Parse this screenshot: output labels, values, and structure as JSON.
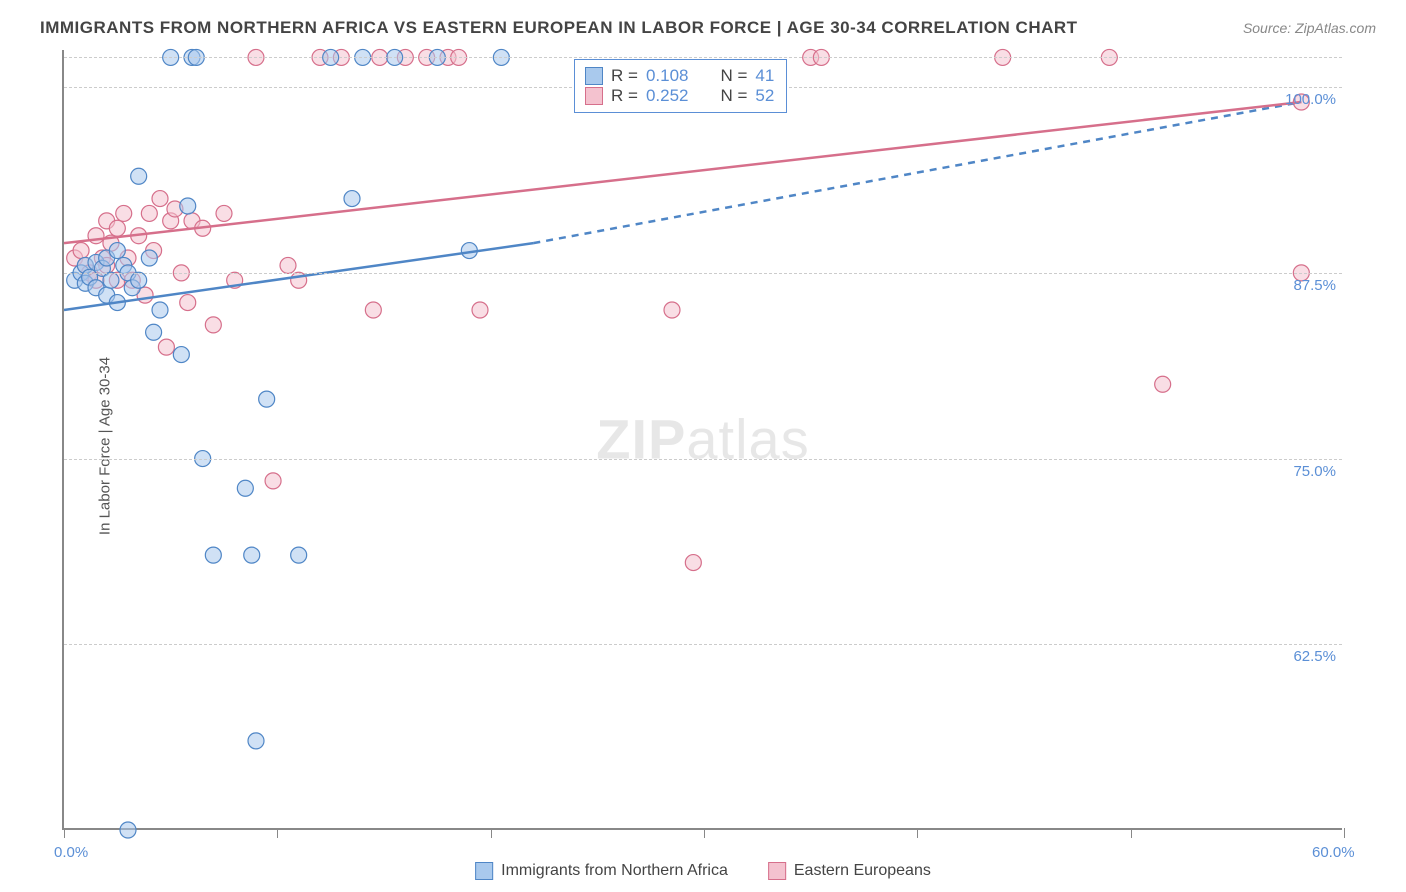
{
  "title": "IMMIGRANTS FROM NORTHERN AFRICA VS EASTERN EUROPEAN IN LABOR FORCE | AGE 30-34 CORRELATION CHART",
  "source": "Source: ZipAtlas.com",
  "ylabel": "In Labor Force | Age 30-34",
  "watermark_part1": "ZIP",
  "watermark_part2": "atlas",
  "chart": {
    "type": "scatter",
    "xlim": [
      0,
      60
    ],
    "ylim": [
      50,
      102.5
    ],
    "y_gridlines": [
      62.5,
      75.0,
      87.5,
      100.0,
      102.0
    ],
    "y_tick_labels": [
      "62.5%",
      "75.0%",
      "87.5%",
      "100.0%"
    ],
    "x_ticks": [
      0,
      10,
      20,
      30,
      40,
      50,
      60
    ],
    "x_tick_labels": [
      "0.0%",
      "60.0%"
    ],
    "background_color": "#ffffff",
    "grid_color": "#cccccc",
    "axis_color": "#888888",
    "tick_label_color": "#5b8fd6",
    "marker_radius": 8,
    "marker_opacity": 0.55,
    "line_width": 2.5
  },
  "series_a": {
    "label": "Immigrants from Northern Africa",
    "color_fill": "#a9c9ed",
    "color_stroke": "#4f86c6",
    "R": "0.108",
    "N": "41",
    "trend": {
      "x1": 0,
      "y1": 85.0,
      "x2": 22,
      "y2": 89.5,
      "x2_dash": 58,
      "y2_dash": 99.0
    },
    "points": [
      [
        0.5,
        87
      ],
      [
        0.8,
        87.5
      ],
      [
        1.0,
        88
      ],
      [
        1.0,
        86.8
      ],
      [
        1.2,
        87.2
      ],
      [
        1.5,
        86.5
      ],
      [
        1.5,
        88.2
      ],
      [
        1.8,
        87.8
      ],
      [
        2.0,
        88.5
      ],
      [
        2.0,
        86
      ],
      [
        2.2,
        87
      ],
      [
        2.5,
        89
      ],
      [
        2.5,
        85.5
      ],
      [
        2.8,
        88
      ],
      [
        3.0,
        87.5
      ],
      [
        3.2,
        86.5
      ],
      [
        3.5,
        94
      ],
      [
        3.5,
        87
      ],
      [
        4.0,
        88.5
      ],
      [
        4.2,
        83.5
      ],
      [
        4.5,
        85
      ],
      [
        5.0,
        102
      ],
      [
        5.5,
        82
      ],
      [
        5.8,
        92
      ],
      [
        6.0,
        102
      ],
      [
        6.2,
        102
      ],
      [
        6.5,
        75
      ],
      [
        7.0,
        68.5
      ],
      [
        8.5,
        73
      ],
      [
        8.8,
        68.5
      ],
      [
        9.0,
        56
      ],
      [
        9.5,
        79
      ],
      [
        11.0,
        68.5
      ],
      [
        12.5,
        102
      ],
      [
        13.5,
        92.5
      ],
      [
        14.0,
        102
      ],
      [
        15.5,
        102
      ],
      [
        17.5,
        102
      ],
      [
        19.0,
        89
      ],
      [
        20.5,
        102
      ],
      [
        3.0,
        50
      ]
    ]
  },
  "series_b": {
    "label": "Eastern Europeans",
    "color_fill": "#f4c2cf",
    "color_stroke": "#d66f8b",
    "R": "0.252",
    "N": "52",
    "trend": {
      "x1": 0,
      "y1": 89.5,
      "x2": 58,
      "y2": 99.0
    },
    "points": [
      [
        0.5,
        88.5
      ],
      [
        0.8,
        89
      ],
      [
        1.0,
        88
      ],
      [
        1.2,
        87.5
      ],
      [
        1.5,
        90
      ],
      [
        1.5,
        87
      ],
      [
        1.8,
        88.5
      ],
      [
        2.0,
        91
      ],
      [
        2.0,
        88
      ],
      [
        2.2,
        89.5
      ],
      [
        2.5,
        90.5
      ],
      [
        2.5,
        87
      ],
      [
        2.8,
        91.5
      ],
      [
        3.0,
        88.5
      ],
      [
        3.2,
        87
      ],
      [
        3.5,
        90
      ],
      [
        3.8,
        86
      ],
      [
        4.0,
        91.5
      ],
      [
        4.2,
        89
      ],
      [
        4.5,
        92.5
      ],
      [
        4.8,
        82.5
      ],
      [
        5.0,
        91
      ],
      [
        5.2,
        91.8
      ],
      [
        5.5,
        87.5
      ],
      [
        5.8,
        85.5
      ],
      [
        6.0,
        91
      ],
      [
        6.5,
        90.5
      ],
      [
        7.0,
        84
      ],
      [
        7.5,
        91.5
      ],
      [
        8.0,
        87
      ],
      [
        9.0,
        102
      ],
      [
        9.8,
        73.5
      ],
      [
        10.5,
        88
      ],
      [
        11.0,
        87
      ],
      [
        12.0,
        102
      ],
      [
        13.0,
        102
      ],
      [
        14.5,
        85
      ],
      [
        14.8,
        102
      ],
      [
        16.0,
        102
      ],
      [
        17.0,
        102
      ],
      [
        18.0,
        102
      ],
      [
        18.5,
        102
      ],
      [
        19.5,
        85
      ],
      [
        28.5,
        85
      ],
      [
        29.5,
        68
      ],
      [
        35.0,
        102
      ],
      [
        35.5,
        102
      ],
      [
        44.0,
        102
      ],
      [
        49.0,
        102
      ],
      [
        51.5,
        80
      ],
      [
        58.0,
        87.5
      ],
      [
        58.0,
        99
      ]
    ]
  },
  "legend_top": {
    "R_label": "R =",
    "N_label": "N ="
  }
}
